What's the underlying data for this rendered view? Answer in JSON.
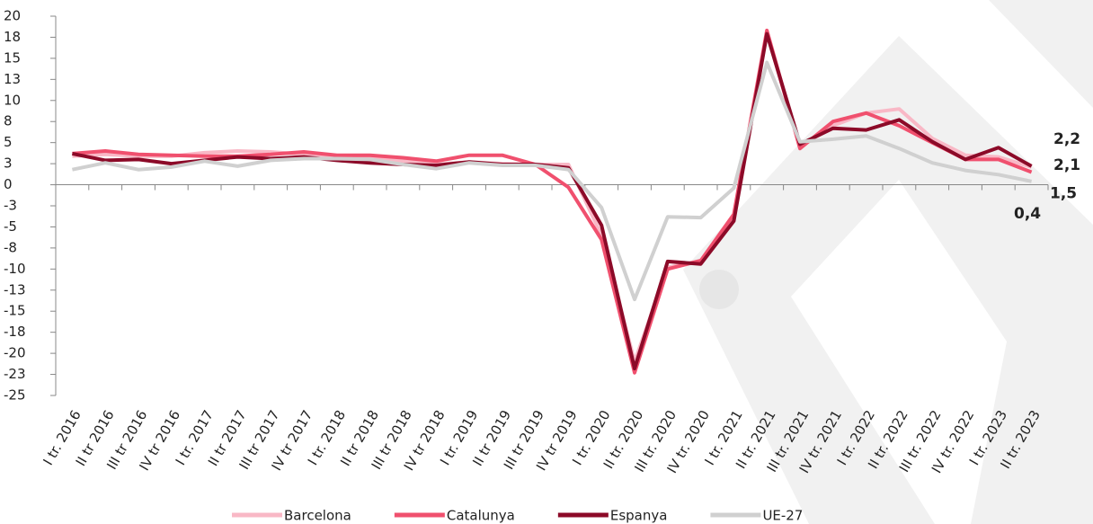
{
  "chart_data": {
    "type": "line",
    "categories": [
      "I tr. 2016",
      "II tr 2016",
      "III tr 2016",
      "IV tr 2016",
      "I tr. 2017",
      "II tr 2017",
      "III tr 2017",
      "IV tr 2017",
      "I tr. 2018",
      "II tr 2018",
      "III tr 2018",
      "IV tr 2018",
      "I tr. 2019",
      "II tr 2019",
      "III tr 2019",
      "IV tr 2019",
      "I tr. 2020",
      "II tr. 2020",
      "III tr. 2020",
      "IV tr. 2020",
      "I tr. 2021",
      "II tr. 2021",
      "III tr. 2021",
      "IV tr. 2021",
      "I tr. 2022",
      "II tr. 2022",
      "III tr. 2022",
      "IV tr. 2022",
      "I tr. 2023",
      "II tr. 2023"
    ],
    "series": [
      {
        "name": "Barcelona",
        "color": "#f9b8c6",
        "values": [
          3.4,
          3.6,
          3.4,
          3.4,
          3.8,
          4.0,
          3.9,
          3.6,
          3.4,
          3.2,
          2.8,
          2.4,
          2.7,
          2.5,
          2.4,
          2.4,
          -6.0,
          -21.0,
          -9.8,
          -9.0,
          -4.0,
          18.0,
          4.5,
          7.0,
          8.5,
          9.0,
          5.5,
          3.5,
          3.3,
          2.1
        ],
        "value_labels": [
          null,
          null,
          null,
          null,
          null,
          null,
          null,
          null,
          null,
          null,
          null,
          null,
          null,
          null,
          null,
          null,
          null,
          null,
          null,
          null,
          null,
          null,
          null,
          null,
          null,
          null,
          null,
          null,
          null,
          "2,1"
        ]
      },
      {
        "name": "Catalunya",
        "color": "#f0506e",
        "values": [
          3.7,
          4.0,
          3.6,
          3.5,
          3.4,
          3.4,
          3.6,
          3.9,
          3.5,
          3.5,
          3.2,
          2.8,
          3.5,
          3.5,
          2.4,
          -0.3,
          -6.5,
          -22.3,
          -10.0,
          -9.0,
          -3.5,
          18.3,
          4.3,
          7.5,
          8.5,
          7.0,
          5.0,
          3.0,
          3.0,
          1.5
        ],
        "value_labels": [
          null,
          null,
          null,
          null,
          null,
          null,
          null,
          null,
          null,
          null,
          null,
          null,
          null,
          null,
          null,
          null,
          null,
          null,
          null,
          null,
          null,
          null,
          null,
          null,
          null,
          null,
          null,
          null,
          null,
          "1,5"
        ]
      },
      {
        "name": "Espanya",
        "color": "#8c0a28",
        "values": [
          3.7,
          2.9,
          3.0,
          2.5,
          2.9,
          3.3,
          3.1,
          3.3,
          2.9,
          2.6,
          2.4,
          2.3,
          2.7,
          2.4,
          2.4,
          2.0,
          -4.8,
          -21.8,
          -9.1,
          -9.4,
          -4.3,
          17.9,
          4.8,
          6.7,
          6.5,
          7.7,
          5.1,
          3.0,
          4.4,
          2.2
        ],
        "value_labels": [
          null,
          null,
          null,
          null,
          null,
          null,
          null,
          null,
          null,
          null,
          null,
          null,
          null,
          null,
          null,
          null,
          null,
          null,
          null,
          null,
          null,
          null,
          null,
          null,
          null,
          null,
          null,
          null,
          null,
          "2,2"
        ]
      },
      {
        "name": "UE-27",
        "color": "#d0d0d0",
        "values": [
          1.8,
          2.6,
          1.8,
          2.1,
          2.8,
          2.2,
          2.9,
          3.1,
          3.1,
          3.0,
          2.4,
          1.9,
          2.6,
          2.3,
          2.3,
          1.8,
          -2.7,
          -13.6,
          -3.8,
          -3.9,
          -0.4,
          14.5,
          5.1,
          5.4,
          5.8,
          4.3,
          2.6,
          1.7,
          1.2,
          0.4
        ],
        "value_labels": [
          null,
          null,
          null,
          null,
          null,
          null,
          null,
          null,
          null,
          null,
          null,
          null,
          null,
          null,
          null,
          null,
          null,
          null,
          null,
          null,
          null,
          null,
          null,
          null,
          null,
          null,
          null,
          null,
          null,
          "0,4"
        ]
      }
    ],
    "ylim": [
      -25,
      20
    ],
    "yticks": [
      20,
      {
        "value": 17.5,
        "label": "18"
      },
      15,
      {
        "value": 12.5,
        "label": "13"
      },
      10,
      {
        "value": 7.5,
        "label": "8"
      },
      5,
      {
        "value": 2.5,
        "label": "3"
      },
      0,
      {
        "value": -2.5,
        "label": "-3"
      },
      -5,
      {
        "value": -7.5,
        "label": "-8"
      },
      -10,
      {
        "value": -12.5,
        "label": "-13"
      },
      -15,
      {
        "value": -17.5,
        "label": "-18"
      },
      -20,
      {
        "value": -22.5,
        "label": "-23"
      },
      -25
    ]
  }
}
